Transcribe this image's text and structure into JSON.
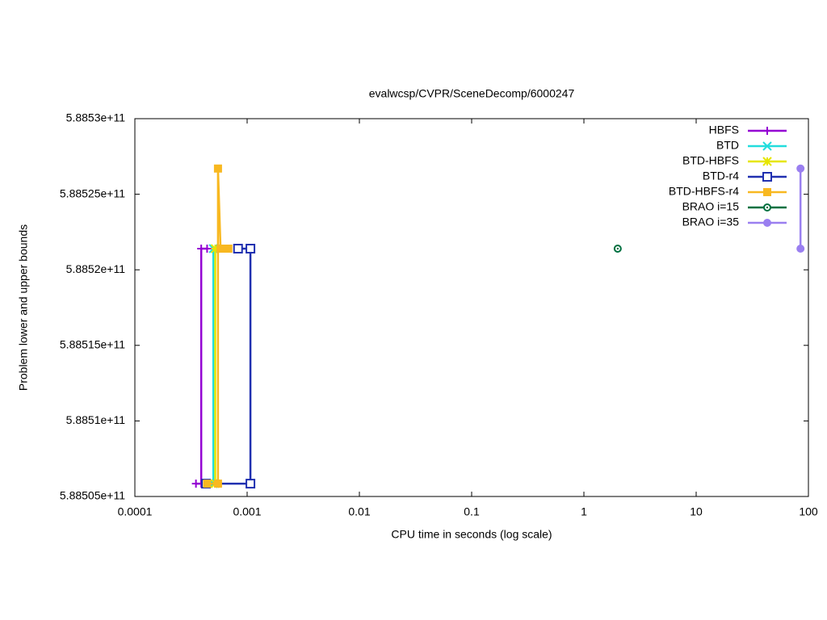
{
  "chart_data": {
    "type": "line",
    "title": "evalwcsp/CVPR/SceneDecomp/6000247",
    "x_label": "CPU time in seconds (log scale)",
    "y_label": "Problem lower and upper bounds",
    "xlog": true,
    "xlim": [
      0.0001,
      100
    ],
    "xticks": [
      0.0001,
      0.001,
      0.01,
      0.1,
      1,
      10,
      100
    ],
    "ylim": [
      588505000000,
      588530000000
    ],
    "yticks": [
      {
        "value": 588505000000,
        "label": "5.88505e+11"
      },
      {
        "value": 588510000000,
        "label": "5.8851e+11"
      },
      {
        "value": 588515000000,
        "label": "5.88515e+11"
      },
      {
        "value": 588520000000,
        "label": "5.8852e+11"
      },
      {
        "value": 588525000000,
        "label": "5.88525e+11"
      },
      {
        "value": 588530000000,
        "label": "5.8853e+11"
      }
    ],
    "legend": "top-right",
    "series": [
      {
        "name": "HBFS",
        "color": "#9400d3",
        "marker": "plus",
        "x": [
          0.00035,
          0.00039,
          0.00039,
          0.00044
        ],
        "values": [
          588505850000,
          588505850000,
          588521400000,
          588521400000
        ]
      },
      {
        "name": "BTD",
        "color": "#22dddd",
        "marker": "cross",
        "x": [
          0.0005,
          0.0005
        ],
        "values": [
          588505850000,
          588521400000
        ]
      },
      {
        "name": "BTD-HBFS",
        "color": "#e6e600",
        "marker": "star",
        "x": [
          0.00052,
          0.00052
        ],
        "values": [
          588505850000,
          588521400000
        ]
      },
      {
        "name": "BTD-r4",
        "color": "#2030b0",
        "marker": "box",
        "x": [
          0.00043,
          0.00107,
          0.00107,
          0.00083
        ],
        "values": [
          588505850000,
          588505850000,
          588521400000,
          588521400000
        ]
      },
      {
        "name": "BTD-HBFS-r4",
        "color": "#f8b820",
        "marker": "filled-box",
        "x": [
          0.00044,
          0.00055,
          0.00055,
          0.00058,
          0.00068
        ],
        "values": [
          588505850000,
          588505850000,
          588526700000,
          588521400000,
          588521400000
        ]
      },
      {
        "name": "BRAO i=15",
        "color": "#007040",
        "marker": "circle",
        "x": [
          2.0
        ],
        "values": [
          588521400000
        ]
      },
      {
        "name": "BRAO i=35",
        "color": "#9a7ff0",
        "marker": "filled-circle",
        "x": [
          85,
          85
        ],
        "values": [
          588526700000,
          588521400000
        ]
      }
    ]
  }
}
